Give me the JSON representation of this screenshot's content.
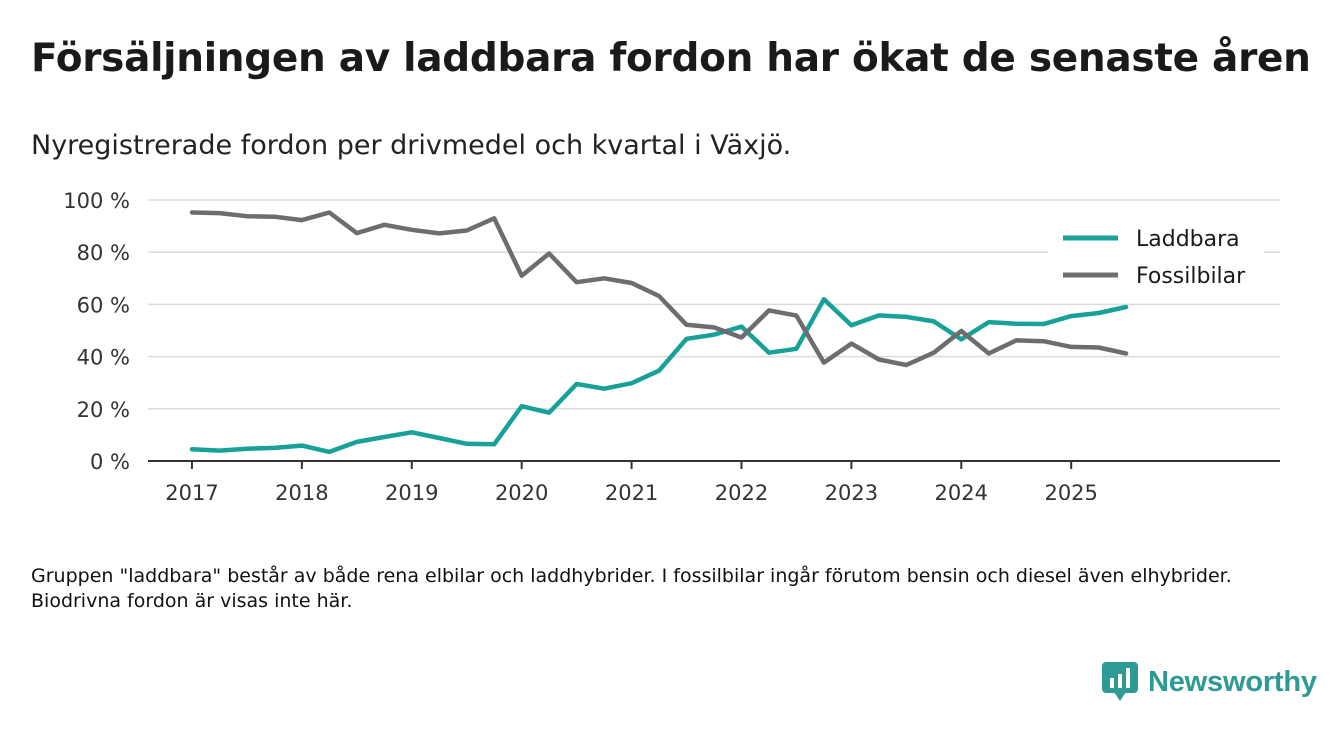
{
  "title": "Försäljningen av laddbara fordon har ökat de senaste åren",
  "subtitle": "Nyregistrerade fordon per drivmedel och kvartal i Växjö.",
  "footnote": "Gruppen \"laddbara\" består av både rena elbilar och laddhybrider. I fossilbilar ingår förutom bensin och diesel även elhybrider. Biodrivna fordon är visas inte här.",
  "brand": {
    "name": "Newsworthy",
    "color": "#2e9a93",
    "icon": "bar-chart-logo-icon"
  },
  "chart_data": {
    "type": "line",
    "title": "Försäljningen av laddbara fordon har ökat de senaste åren",
    "subtitle": "Nyregistrerade fordon per drivmedel och kvartal i Växjö.",
    "xlabel": "",
    "ylabel": "",
    "ylim": [
      0,
      100
    ],
    "xlim": [
      2016.6,
      2026.9
    ],
    "y_ticks": [
      0,
      20,
      40,
      60,
      80,
      100
    ],
    "y_tick_labels": [
      "0 %",
      "20 %",
      "40 %",
      "60 %",
      "80 %",
      "100 %"
    ],
    "x_ticks": [
      2017,
      2018,
      2019,
      2020,
      2021,
      2022,
      2023,
      2024,
      2025
    ],
    "x_tick_labels": [
      "2017",
      "2018",
      "2019",
      "2020",
      "2021",
      "2022",
      "2023",
      "2024",
      "2025"
    ],
    "grid": true,
    "legend_position": "top-right",
    "x": [
      2017.0,
      2017.25,
      2017.5,
      2017.75,
      2018.0,
      2018.25,
      2018.5,
      2018.75,
      2019.0,
      2019.25,
      2019.5,
      2019.75,
      2020.0,
      2020.25,
      2020.5,
      2020.75,
      2021.0,
      2021.25,
      2021.5,
      2021.75,
      2022.0,
      2022.25,
      2022.5,
      2022.75,
      2023.0,
      2023.25,
      2023.5,
      2023.75,
      2024.0,
      2024.25,
      2024.5,
      2024.75,
      2025.0,
      2025.25,
      2025.5
    ],
    "series": [
      {
        "name": "Laddbara",
        "color": "#17a198",
        "values": [
          4.5,
          4,
          4.7,
          5,
          5.9,
          3.5,
          7.3,
          9.2,
          11,
          8.8,
          6.6,
          6.4,
          21,
          18.5,
          29.5,
          27.7,
          29.8,
          34.6,
          46.8,
          48.4,
          51.5,
          41.5,
          43,
          62,
          52,
          55.8,
          55.2,
          53.5,
          46.6,
          53.2,
          52.6,
          52.5,
          55.5,
          56.7,
          59
        ]
      },
      {
        "name": "Fossilbilar",
        "color": "#6d6d70",
        "values": [
          95.2,
          95,
          93.8,
          93.6,
          92.3,
          95.2,
          87.3,
          90.5,
          88.6,
          87.2,
          88.3,
          93,
          71,
          79.5,
          68.5,
          70,
          68.2,
          63.2,
          52.2,
          51.2,
          47.3,
          57.7,
          55.7,
          37.7,
          45,
          38.9,
          36.8,
          41.5,
          49.8,
          41.2,
          46.2,
          45.9,
          43.7,
          43.5,
          41.2
        ]
      }
    ]
  }
}
